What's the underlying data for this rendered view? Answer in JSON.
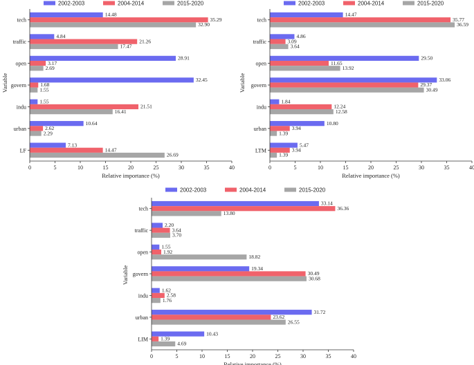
{
  "colors": {
    "2002-2003": "#6b6bf0",
    "2004-2014": "#f0626b",
    "2015-2020": "#a6a6a6"
  },
  "chart_data": [
    {
      "type": "bar",
      "orientation": "horizontal",
      "categories": [
        "tech",
        "traffic",
        "open",
        "govern",
        "indu",
        "urban",
        "LF"
      ],
      "series": [
        {
          "name": "2002-2003",
          "values": [
            14.48,
            4.84,
            28.91,
            32.45,
            1.55,
            10.64,
            7.13
          ]
        },
        {
          "name": "2004-2014",
          "values": [
            35.29,
            21.26,
            3.17,
            1.68,
            21.51,
            2.62,
            14.47
          ]
        },
        {
          "name": "2015-2020",
          "values": [
            32.9,
            17.47,
            2.69,
            1.55,
            16.41,
            2.29,
            26.69
          ]
        }
      ],
      "value_labels": [
        [
          "14.48",
          "4.84",
          "28.91",
          "32.45",
          "1.55",
          "10.64",
          "7.13"
        ],
        [
          "35.29",
          "21.26",
          "3.17",
          "1.68",
          "21.51",
          "2.62",
          "14.47"
        ],
        [
          "32.90",
          "17.47",
          "2.69",
          "1.55",
          "16.41",
          "2.29",
          "26.69"
        ]
      ],
      "xlabel": "Relative importance (%)",
      "ylabel": "Variable",
      "xlim": [
        0,
        40
      ],
      "xticks": [
        "0",
        "5",
        "10",
        "15",
        "20",
        "25",
        "30",
        "35",
        "40"
      ],
      "legend_position": "top",
      "grid": false
    },
    {
      "type": "bar",
      "orientation": "horizontal",
      "categories": [
        "tech",
        "traffic",
        "open",
        "govern",
        "indu",
        "urban",
        "LTM"
      ],
      "series": [
        {
          "name": "2002-2003",
          "values": [
            14.47,
            4.86,
            29.5,
            33.06,
            1.84,
            10.8,
            5.47
          ]
        },
        {
          "name": "2004-2014",
          "values": [
            35.77,
            3.09,
            11.65,
            29.37,
            12.24,
            3.94,
            3.94
          ]
        },
        {
          "name": "2015-2020",
          "values": [
            36.59,
            3.64,
            13.92,
            30.49,
            12.58,
            1.39,
            1.39
          ]
        }
      ],
      "value_labels": [
        [
          "14.47",
          "4.86",
          "29.50",
          "33.06",
          "1.84",
          "10.80",
          "5.47"
        ],
        [
          "35.77",
          "3.09",
          "11.65",
          "29.37",
          "12.24",
          "3.94",
          "3.94"
        ],
        [
          "36.59",
          "3.64",
          "13.92",
          "30.49",
          "12.58",
          "1.39",
          "1.39"
        ]
      ],
      "xlabel": "Relative importance (%)",
      "ylabel": "Variable",
      "xlim": [
        0,
        40
      ],
      "xticks": [
        "0",
        "5",
        "10",
        "15",
        "20",
        "25",
        "30",
        "35",
        "40"
      ],
      "legend_position": "top",
      "grid": false
    },
    {
      "type": "bar",
      "orientation": "horizontal",
      "categories": [
        "tech",
        "traffic",
        "open",
        "govern",
        "indu",
        "urban",
        "LIM"
      ],
      "series": [
        {
          "name": "2002-2003",
          "values": [
            33.14,
            2.2,
            1.55,
            19.34,
            1.62,
            31.72,
            10.43
          ]
        },
        {
          "name": "2004-2014",
          "values": [
            36.36,
            3.64,
            1.92,
            30.49,
            2.58,
            23.62,
            1.39
          ]
        },
        {
          "name": "2015-2020",
          "values": [
            13.8,
            3.7,
            18.82,
            30.68,
            1.76,
            26.55,
            4.69
          ]
        }
      ],
      "value_labels": [
        [
          "33.14",
          "2.20",
          "1.55",
          "19.34",
          "1.62",
          "31.72",
          "10.43"
        ],
        [
          "36.36",
          "3.64",
          "1.92",
          "30.49",
          "2.58",
          "23.62",
          "1.39"
        ],
        [
          "13.80",
          "3.70",
          "18.82",
          "30.68",
          "1.76",
          "26.55",
          "4.69"
        ]
      ],
      "xlabel": "Relative importance (%)",
      "ylabel": "Variable",
      "xlim": [
        0,
        40
      ],
      "xticks": [
        "0",
        "5",
        "10",
        "15",
        "20",
        "25",
        "30",
        "35",
        "40"
      ],
      "legend_position": "top",
      "grid": false
    }
  ]
}
